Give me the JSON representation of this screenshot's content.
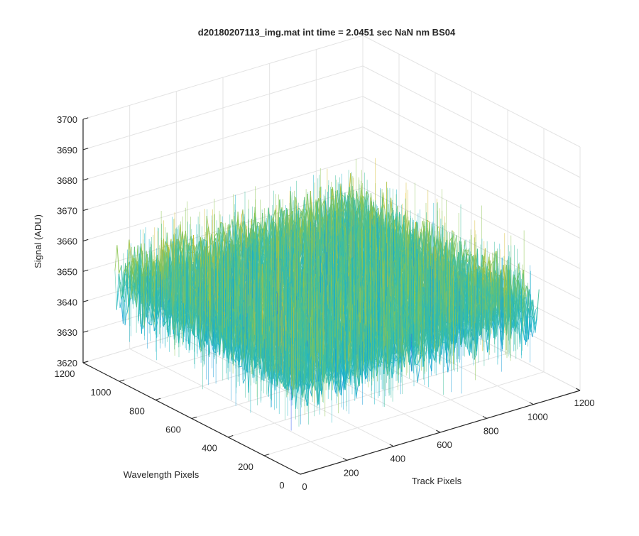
{
  "chart_data": {
    "type": "surface",
    "title": "d20180207113_img.mat int time = 2.0451 sec  NaN nm BS04",
    "xlabel": "Track Pixels",
    "ylabel": "Wavelength Pixels",
    "zlabel": "Signal (ADU)",
    "xlim": [
      0,
      1200
    ],
    "ylim": [
      0,
      1200
    ],
    "zlim": [
      3620,
      3700
    ],
    "x_ticks": [
      "0",
      "200",
      "400",
      "600",
      "800",
      "1000",
      "1200"
    ],
    "y_ticks": [
      "0",
      "200",
      "400",
      "600",
      "800",
      "1000",
      "1200"
    ],
    "z_ticks": [
      "3620",
      "3630",
      "3640",
      "3650",
      "3660",
      "3670",
      "3680",
      "3690",
      "3700"
    ],
    "grid": true,
    "colormap": "parula",
    "surface": {
      "x_range": [
        0,
        1024
      ],
      "y_range": [
        0,
        1024
      ],
      "mean": 3652,
      "spread": 10
    },
    "colors": {
      "axis": "#262626",
      "grid": "#e3e3e3",
      "colormap": [
        "#3e26a8",
        "#2e58f2",
        "#139bd8",
        "#1cb5c7",
        "#41bf9e",
        "#8ac44f",
        "#d3bd34",
        "#fcce2e",
        "#f9fb15"
      ]
    }
  }
}
